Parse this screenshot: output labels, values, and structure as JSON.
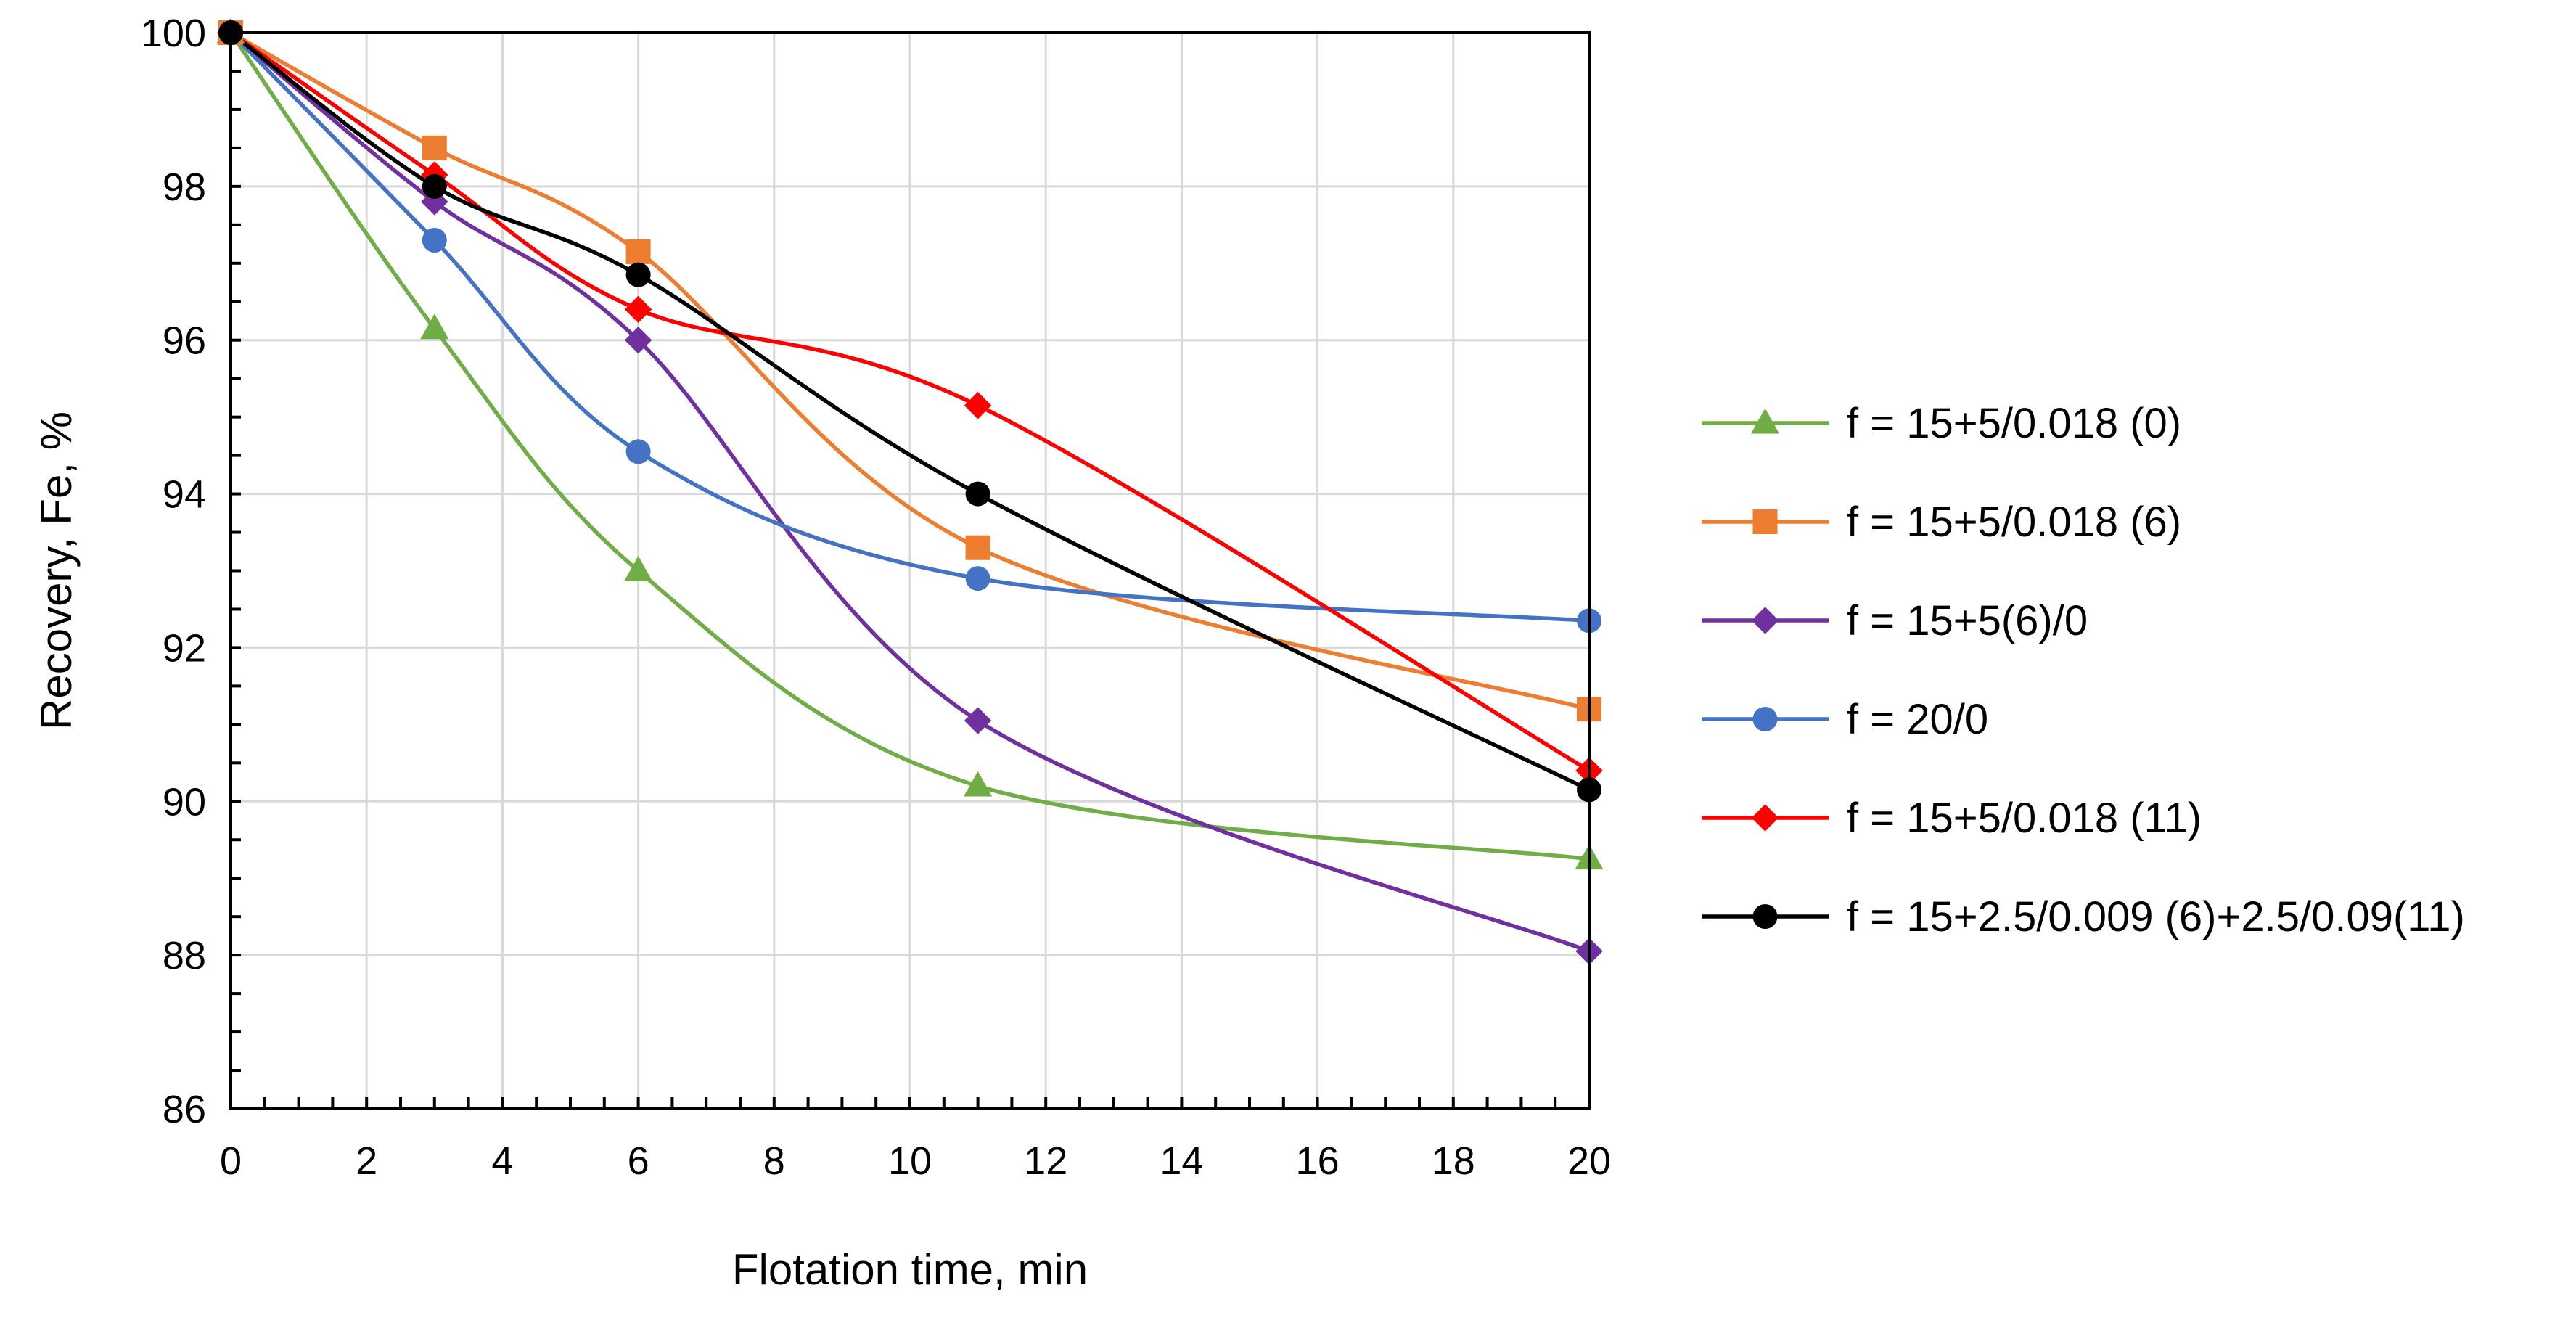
{
  "chart_data": {
    "type": "line",
    "title": "",
    "xlabel": "Flotation time, min",
    "ylabel": "Recovery, Fe,  %",
    "xlim": [
      0,
      20
    ],
    "ylim": [
      86,
      100
    ],
    "xticks": [
      "0",
      "2",
      "4",
      "6",
      "8",
      "10",
      "12",
      "14",
      "16",
      "18",
      "20"
    ],
    "yticks": [
      "86",
      "88",
      "90",
      "92",
      "94",
      "96",
      "98",
      "100"
    ],
    "grid": true,
    "legend_position": "right",
    "x": [
      0,
      3,
      6,
      11,
      20
    ],
    "series": [
      {
        "name": "f = 15+5/0.018 (0)",
        "color": "#70ad47",
        "marker": "triangle",
        "values": [
          100,
          96.15,
          93.0,
          90.2,
          89.25
        ]
      },
      {
        "name": "f = 15+5/0.018 (6)",
        "color": "#ed7d31",
        "marker": "square",
        "values": [
          100,
          98.5,
          97.15,
          93.3,
          91.2
        ]
      },
      {
        "name": "f = 15+5(6)/0",
        "color": "#7030a0",
        "marker": "diamond",
        "values": [
          100,
          97.8,
          96.0,
          91.05,
          88.05
        ]
      },
      {
        "name": "f = 20/0",
        "color": "#4472c4",
        "marker": "circle",
        "values": [
          100,
          97.3,
          94.55,
          92.9,
          92.35
        ]
      },
      {
        "name": "f = 15+5/0.018 (11)",
        "color": "#ff0000",
        "marker": "diamond",
        "values": [
          100,
          98.15,
          96.4,
          95.15,
          90.4
        ]
      },
      {
        "name": "f = 15+2.5/0.009 (6)+2.5/0.09(11)",
        "color": "#000000",
        "marker": "circle",
        "values": [
          100,
          98.0,
          96.85,
          94.0,
          90.15
        ]
      }
    ]
  }
}
